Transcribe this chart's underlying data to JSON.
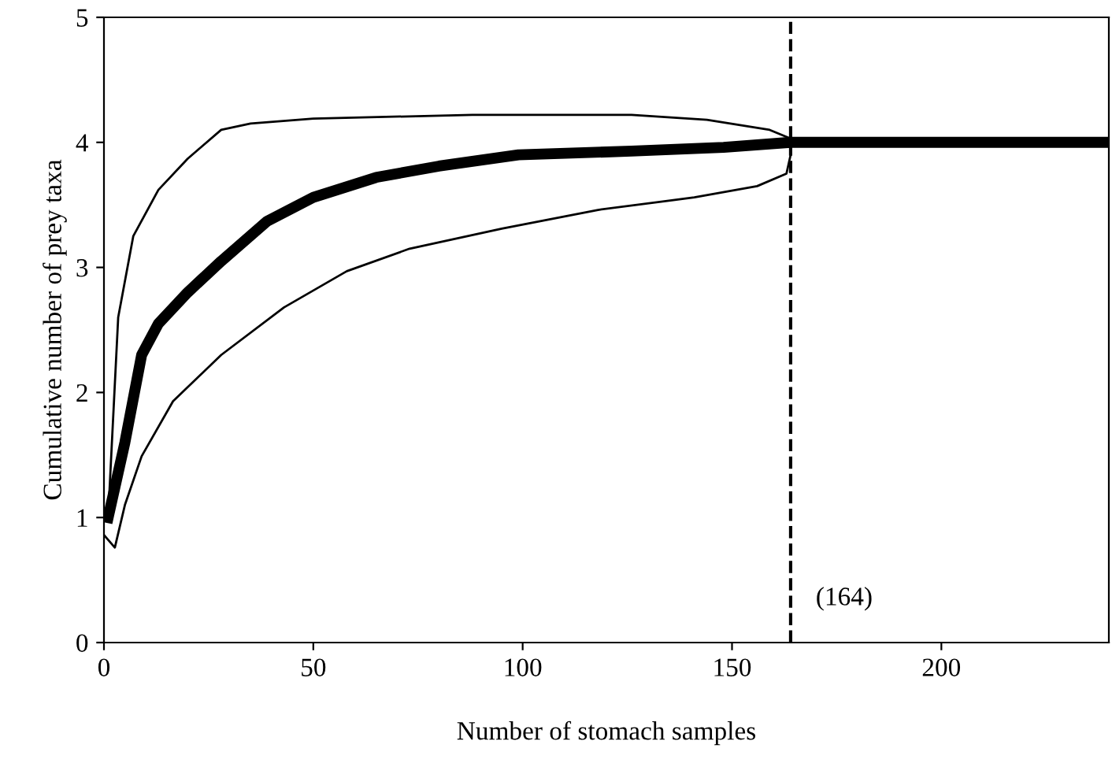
{
  "chart_data": {
    "type": "line",
    "xlabel": "Number of stomach samples",
    "ylabel": "Cumulative number of prey taxa",
    "xlim": [
      0,
      240
    ],
    "ylim": [
      0,
      5
    ],
    "xticks": [
      0,
      50,
      100,
      150,
      200
    ],
    "yticks": [
      0,
      1,
      2,
      3,
      4,
      5
    ],
    "grid": false,
    "legend": false,
    "marker": "none",
    "series": [
      {
        "color": "#000000",
        "line_style": "solid",
        "x": [
          1,
          5,
          9,
          13,
          20,
          28,
          39,
          50,
          65,
          80,
          99,
          126,
          148,
          164,
          240
        ],
        "values": [
          1.0,
          1.6,
          2.3,
          2.55,
          2.8,
          3.05,
          3.37,
          3.56,
          3.72,
          3.81,
          3.9,
          3.93,
          3.96,
          4.0,
          4.0
        ]
      },
      {
        "color": "#000000",
        "line_style": "solid",
        "x": [
          1,
          3.4,
          7,
          13,
          20,
          28,
          35,
          50,
          88,
          126,
          144,
          159,
          164
        ],
        "values": [
          1.0,
          2.6,
          3.25,
          3.62,
          3.87,
          4.1,
          4.15,
          4.19,
          4.22,
          4.22,
          4.18,
          4.1,
          4.03
        ]
      },
      {
        "color": "#000000",
        "line_style": "solid",
        "x": [
          0,
          2.6,
          5,
          9,
          16.5,
          28,
          43,
          58,
          73,
          95,
          118,
          141,
          156,
          163,
          164
        ],
        "values": [
          0.86,
          0.76,
          1.1,
          1.49,
          1.93,
          2.3,
          2.68,
          2.97,
          3.15,
          3.31,
          3.46,
          3.56,
          3.65,
          3.75,
          3.9
        ]
      }
    ],
    "ref_lines": [
      {
        "axis": "x",
        "value": 164,
        "label": "(164)",
        "line_style": "dashed",
        "color": "#000000"
      }
    ]
  }
}
